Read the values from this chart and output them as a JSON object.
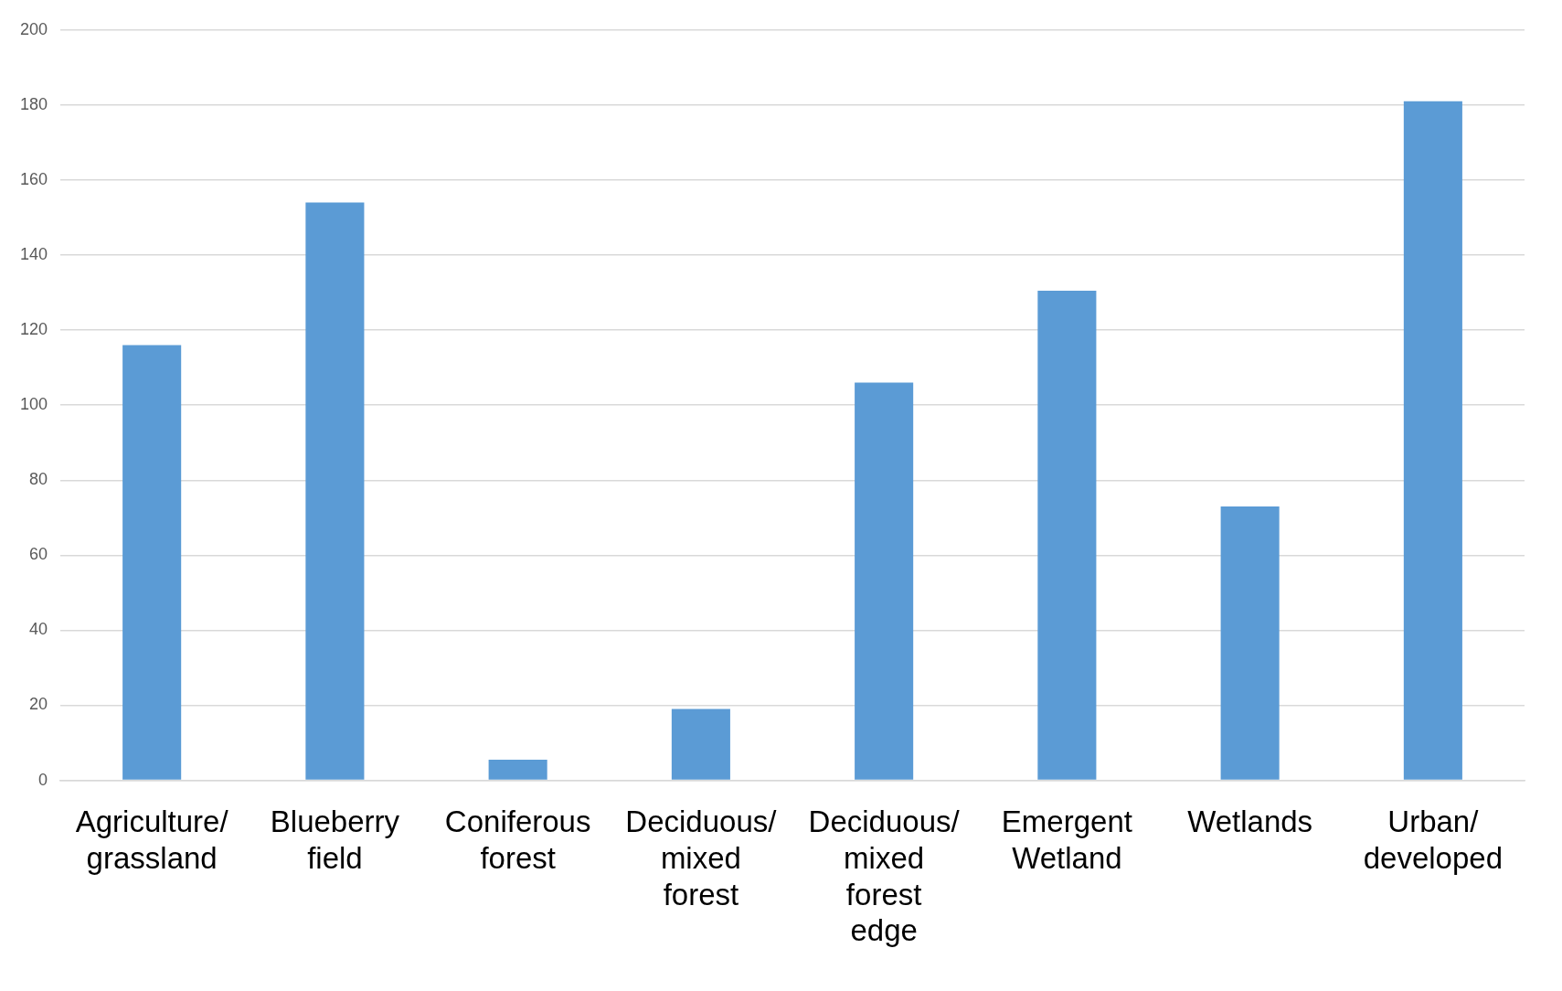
{
  "chart_data": {
    "type": "bar",
    "categories": [
      "Agriculture/grassland",
      "Blueberry field",
      "Coniferous forest",
      "Deciduous/mixed forest",
      "Deciduous/mixed forest edge",
      "Emergent Wetland",
      "Wetlands",
      "Urban/developed"
    ],
    "values": [
      116,
      154,
      5.5,
      19,
      106,
      130.5,
      73,
      181
    ],
    "color": "#5b9bd5",
    "ylim": [
      0,
      200
    ],
    "yticks": [
      0,
      20,
      40,
      60,
      80,
      100,
      120,
      140,
      160,
      180,
      200
    ],
    "grid": "y",
    "legend": false
  }
}
